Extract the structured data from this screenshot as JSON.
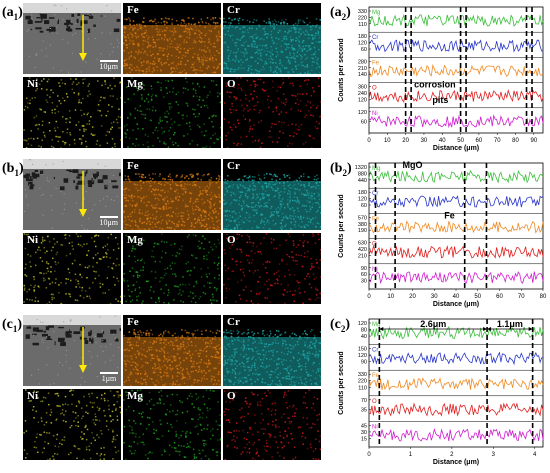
{
  "colors": {
    "Mg": "#3bbf3b",
    "Cr": "#2a36c8",
    "Fe": "#f08a24",
    "O": "#e02020",
    "Ni": "#d01fd0"
  },
  "rows": [
    {
      "map_label": "a",
      "map_sub": "1",
      "chart_label": "a",
      "chart_sub": "2",
      "maps": [
        {
          "el": "SEM",
          "label": "",
          "scalebar": "10μm"
        },
        {
          "el": "Fe",
          "label": "Fe"
        },
        {
          "el": "Cr",
          "label": "Cr"
        },
        {
          "el": "Ni",
          "label": "Ni"
        },
        {
          "el": "Mg",
          "label": "Mg"
        },
        {
          "el": "O",
          "label": "O"
        }
      ],
      "chart_data": {
        "type": "line",
        "xlabel": "Distance (μm)",
        "ylabel": "Counts per second",
        "xlim": [
          0,
          95
        ],
        "x_ticks": [
          0,
          10,
          20,
          30,
          40,
          50,
          60,
          70,
          80,
          90
        ],
        "dashed_x": [
          20,
          23,
          50,
          53,
          86,
          89
        ],
        "series": [
          {
            "name": "Mg",
            "ticks": [
              "330",
              "220",
              "110"
            ]
          },
          {
            "name": "Cr",
            "ticks": [
              "180",
              "120",
              "60"
            ]
          },
          {
            "name": "Fe",
            "ticks": [
              "280",
              "210",
              "140"
            ]
          },
          {
            "name": "O",
            "ticks": [
              "360",
              "240",
              "120"
            ]
          },
          {
            "name": "Ni",
            "ticks": [
              "120",
              "60"
            ]
          }
        ],
        "annotations": [
          {
            "text": "corrosion",
            "x": 36,
            "band": 3.2
          },
          {
            "text": "pits",
            "x": 39,
            "band": 3.8
          }
        ]
      }
    },
    {
      "map_label": "b",
      "map_sub": "1",
      "chart_label": "b",
      "chart_sub": "2",
      "maps": [
        {
          "el": "SEM",
          "label": "",
          "scalebar": "10μm"
        },
        {
          "el": "Fe",
          "label": "Fe"
        },
        {
          "el": "Cr",
          "label": "Cr"
        },
        {
          "el": "Ni",
          "label": "Ni"
        },
        {
          "el": "Mg",
          "label": "Mg"
        },
        {
          "el": "O",
          "label": "O"
        }
      ],
      "chart_data": {
        "type": "line",
        "xlabel": "Distance (μm)",
        "ylabel": "Counts per second",
        "xlim": [
          0,
          80
        ],
        "x_ticks": [
          0,
          10,
          20,
          30,
          40,
          50,
          60,
          70,
          80
        ],
        "dashed_x": [
          3,
          12,
          44,
          54
        ],
        "series": [
          {
            "name": "Mg",
            "ticks": [
              "1320",
              "880",
              "440"
            ]
          },
          {
            "name": "Cr",
            "ticks": [
              "180",
              "120",
              "60"
            ]
          },
          {
            "name": "Fe",
            "ticks": [
              "570",
              "380",
              "190"
            ]
          },
          {
            "name": "O",
            "ticks": [
              "630",
              "420",
              "210"
            ]
          },
          {
            "name": "Ni",
            "ticks": [
              "90",
              "60",
              "30"
            ]
          }
        ],
        "annotations": [
          {
            "text": "MgO",
            "x": 20,
            "band": 0.2
          },
          {
            "text": "Fe",
            "x": 37,
            "band": 2.2
          }
        ]
      }
    },
    {
      "map_label": "c",
      "map_sub": "1",
      "chart_label": "c",
      "chart_sub": "2",
      "maps": [
        {
          "el": "SEM",
          "label": "",
          "scalebar": "1μm"
        },
        {
          "el": "Fe",
          "label": "Fe"
        },
        {
          "el": "Cr",
          "label": "Cr"
        },
        {
          "el": "Ni",
          "label": "Ni"
        },
        {
          "el": "Mg",
          "label": "Mg"
        },
        {
          "el": "O",
          "label": "O"
        }
      ],
      "chart_data": {
        "type": "line",
        "xlabel": "Distance (μm)",
        "ylabel": "Counts per second",
        "xlim": [
          0,
          4.2
        ],
        "x_ticks": [
          0,
          1,
          2,
          3,
          4
        ],
        "dashed_x": [
          0.25,
          2.85,
          3.95
        ],
        "series": [
          {
            "name": "Mg",
            "ticks": [
              "120",
              "80",
              "40"
            ]
          },
          {
            "name": "Cr",
            "ticks": [
              "150",
              "120",
              "90"
            ]
          },
          {
            "name": "Fe",
            "ticks": [
              "330",
              "220",
              "110"
            ]
          },
          {
            "name": "O",
            "ticks": [
              "70",
              "35"
            ]
          },
          {
            "name": "Ni",
            "ticks": [
              "45",
              "30",
              "15"
            ]
          }
        ],
        "spans": [
          {
            "text": "2.6μm",
            "x1": 0.25,
            "x2": 2.85
          },
          {
            "text": "1.1μm",
            "x1": 2.85,
            "x2": 3.95
          }
        ]
      }
    }
  ]
}
